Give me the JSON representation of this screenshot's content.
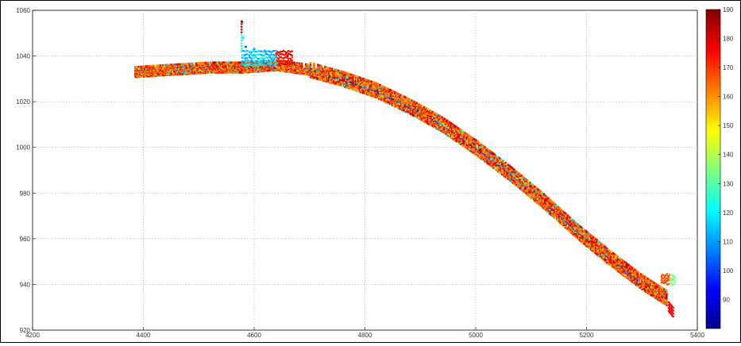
{
  "chart_data": {
    "type": "scatter",
    "title": "",
    "xlabel": "",
    "ylabel": "",
    "xlim": [
      4200,
      5400
    ],
    "ylim": [
      920,
      1060
    ],
    "grid": true,
    "xticks": [
      "4200",
      "4400",
      "4600",
      "4800",
      "5000",
      "5200",
      "5400"
    ],
    "yticks": [
      "920",
      "940",
      "960",
      "980",
      "1000",
      "1020",
      "1040",
      "1060"
    ],
    "colorbar": {
      "min": 80,
      "max": 190,
      "ticks": [
        "90",
        "100",
        "110",
        "120",
        "130",
        "140",
        "150",
        "160",
        "170",
        "180",
        "190"
      ]
    },
    "series": [
      {
        "name": "",
        "centerline_x": [
          4385,
          4450,
          4520,
          4580,
          4640,
          4700,
          4760,
          4820,
          4880,
          4940,
          5000,
          5060,
          5120,
          5180,
          5240,
          5300,
          5345
        ],
        "centerline_y": [
          1033,
          1034,
          1035,
          1035,
          1036,
          1034,
          1030,
          1025,
          1018,
          1010,
          1000,
          989,
          977,
          964,
          952,
          941,
          934
        ],
        "typical_value": 168
      },
      {
        "name": "",
        "x": [
          4578,
          4580,
          4585,
          4600,
          4620,
          4640,
          4660
        ],
        "y": [
          1055,
          1048,
          1044,
          1043,
          1042,
          1041,
          1040
        ],
        "value": [
          185,
          120,
          105,
          110,
          112,
          175,
          180
        ]
      }
    ]
  }
}
